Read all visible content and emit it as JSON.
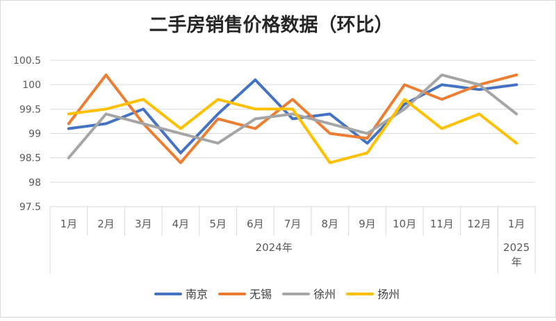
{
  "chart_data": {
    "type": "line",
    "title": "二手房销售价格数据（环比）",
    "categories": [
      "1月",
      "2月",
      "3月",
      "4月",
      "5月",
      "6月",
      "7月",
      "8月",
      "9月",
      "10月",
      "11月",
      "12月",
      "1月"
    ],
    "category_groups": [
      {
        "label": "2024年",
        "count": 12
      },
      {
        "label": "2025年",
        "count": 1
      }
    ],
    "ylim": [
      97.5,
      100.5
    ],
    "yticks": [
      "97.5",
      "98",
      "98.5",
      "99",
      "99.5",
      "100",
      "100.5"
    ],
    "grid": true,
    "legend_position": "bottom",
    "series": [
      {
        "name": "南京",
        "color": "#4472C4",
        "values": [
          99.1,
          99.2,
          99.5,
          98.6,
          99.4,
          100.1,
          99.3,
          99.4,
          98.8,
          99.6,
          100.0,
          99.9,
          100.0
        ]
      },
      {
        "name": "无锡",
        "color": "#ED7D31",
        "values": [
          99.2,
          100.2,
          99.2,
          98.4,
          99.3,
          99.1,
          99.7,
          99.0,
          98.9,
          100.0,
          99.7,
          100.0,
          100.2
        ]
      },
      {
        "name": "徐州",
        "color": "#A5A5A5",
        "values": [
          98.5,
          99.4,
          99.2,
          99.0,
          98.8,
          99.3,
          99.4,
          99.2,
          99.0,
          99.5,
          100.2,
          100.0,
          99.4
        ]
      },
      {
        "name": "扬州",
        "color": "#FFC000",
        "values": [
          99.4,
          99.5,
          99.7,
          99.1,
          99.7,
          99.5,
          99.5,
          98.4,
          98.6,
          99.7,
          99.1,
          99.4,
          98.8
        ]
      }
    ]
  }
}
